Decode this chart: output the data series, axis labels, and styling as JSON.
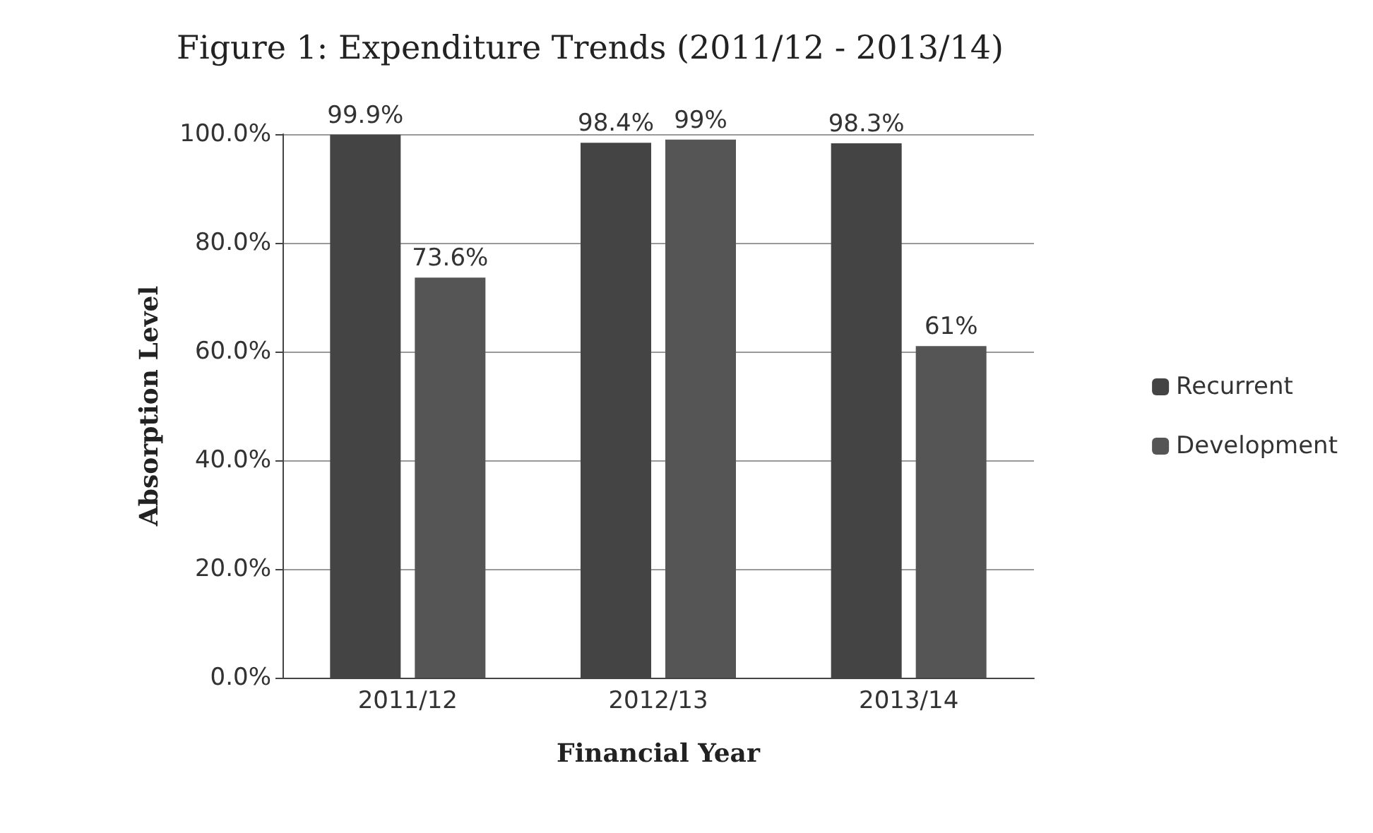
{
  "chart_data": {
    "type": "bar",
    "title": "Figure 1: Expenditure Trends (2011/12 - 2013/14)",
    "xlabel": "Financial Year",
    "ylabel": "Absorption Level",
    "categories": [
      "2011/12",
      "2012/13",
      "2013/14"
    ],
    "series": [
      {
        "name": "Recurrent",
        "color": "#444444",
        "values": [
          99.9,
          98.4,
          98.3
        ],
        "value_labels": [
          "99.9%",
          "98.4%",
          "98.3%"
        ]
      },
      {
        "name": "Development",
        "color": "#555555",
        "values": [
          73.6,
          99,
          61
        ],
        "value_labels": [
          "73.6%",
          "99%",
          "61%"
        ]
      }
    ],
    "ylim": [
      0,
      100
    ],
    "yticks": [
      {
        "value": 0,
        "label": "0.0%"
      },
      {
        "value": 20,
        "label": "20.0%"
      },
      {
        "value": 40,
        "label": "40.0%"
      },
      {
        "value": 60,
        "label": "60.0%"
      },
      {
        "value": 80,
        "label": "80.0%"
      },
      {
        "value": 100,
        "label": "100.0%"
      }
    ],
    "grid": "y",
    "legend": "right"
  }
}
